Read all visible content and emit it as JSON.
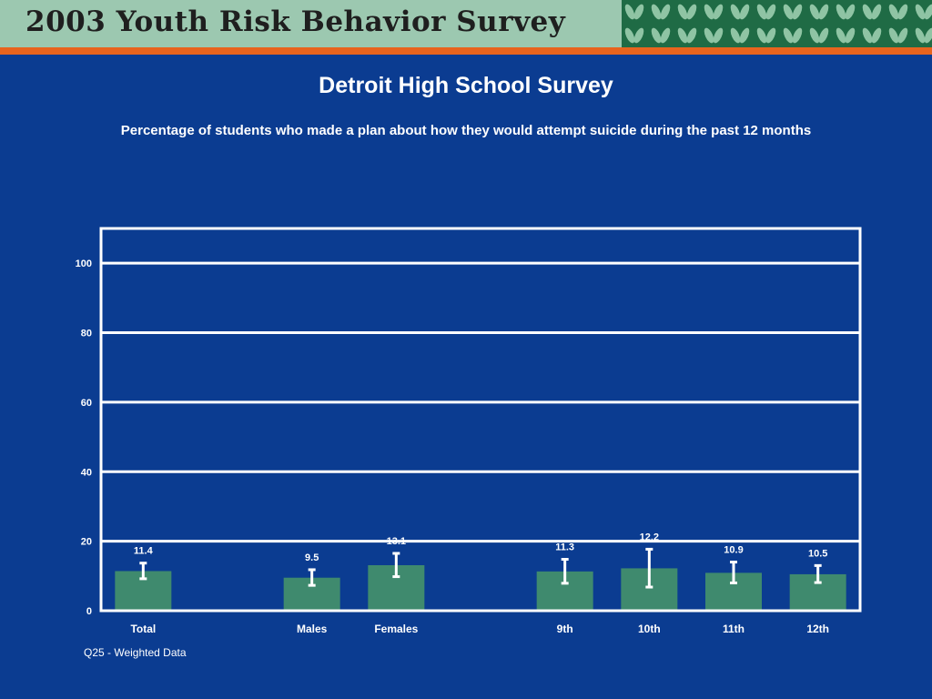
{
  "banner": {
    "title": "2003 Youth Risk Behavior Survey",
    "colors": {
      "background": "#9cc8b0",
      "stripe": "#e8641e",
      "leaves": "#1f6b45"
    }
  },
  "page": {
    "heading": "Detroit High School Survey",
    "subheading": "Percentage of students who made a plan about how they would attempt suicide during the past 12 months",
    "footnote": "Q25 - Weighted Data",
    "colors": {
      "background": "#0b3c91",
      "bar": "#3f8a6e",
      "text": "#ffffff"
    }
  },
  "chart_data": {
    "type": "bar",
    "categories": [
      "Total",
      "Males",
      "Females",
      "9th",
      "10th",
      "11th",
      "12th"
    ],
    "values": [
      11.4,
      9.5,
      13.1,
      11.3,
      12.2,
      10.9,
      10.5
    ],
    "value_labels": [
      "11.4",
      "9.5",
      "13.1",
      "11.3",
      "12.2",
      "10.9",
      "10.5"
    ],
    "error_bars": [
      [
        9.2,
        13.7
      ],
      [
        7.3,
        11.8
      ],
      [
        9.8,
        16.5
      ],
      [
        7.9,
        14.8
      ],
      [
        6.8,
        17.7
      ],
      [
        8.0,
        14.0
      ],
      [
        8.1,
        13.0
      ]
    ],
    "ylim": [
      0,
      110
    ],
    "yticks": [
      0,
      20,
      40,
      60,
      80,
      100
    ],
    "grid": true,
    "title": "",
    "xlabel": "",
    "ylabel": ""
  }
}
